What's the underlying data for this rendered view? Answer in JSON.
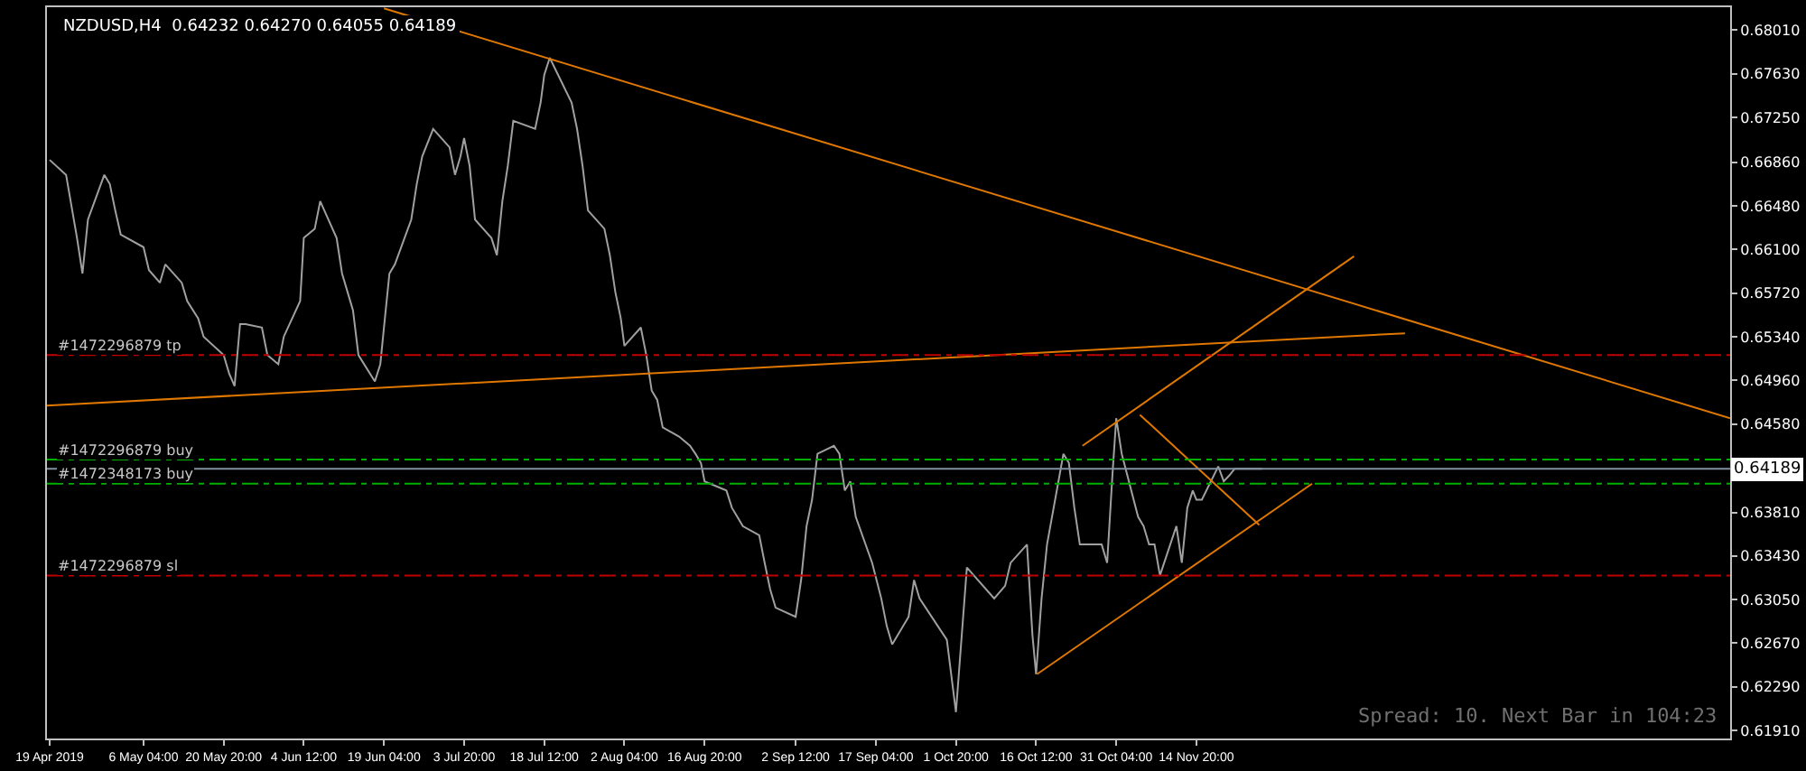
{
  "chart_data": {
    "type": "line",
    "title": "NZDUSD,H4  0.64232 0.64270 0.64055 0.64189",
    "x": [
      "2019-04-19T00:00",
      "2019-04-22T00:00",
      "2019-04-24T00:00",
      "2019-04-25T00:00",
      "2019-04-26T00:00",
      "2019-04-29T00:00",
      "2019-04-30T00:00",
      "2019-05-01T00:00",
      "2019-05-02T00:00",
      "2019-05-06T04:00",
      "2019-05-07T04:00",
      "2019-05-09T04:00",
      "2019-05-10T04:00",
      "2019-05-13T04:00",
      "2019-05-14T04:00",
      "2019-05-16T04:00",
      "2019-05-17T04:00",
      "2019-05-20T20:00",
      "2019-05-21T20:00",
      "2019-05-22T20:00",
      "2019-05-23T20:00",
      "2019-05-24T20:00",
      "2019-05-27T20:00",
      "2019-05-28T20:00",
      "2019-05-30T20:00",
      "2019-05-31T20:00",
      "2019-06-03T20:00",
      "2019-06-04T12:00",
      "2019-06-06T12:00",
      "2019-06-07T12:00",
      "2019-06-10T12:00",
      "2019-06-11T12:00",
      "2019-06-12T12:00",
      "2019-06-13T12:00",
      "2019-06-14T12:00",
      "2019-06-17T12:00",
      "2019-06-18T12:00",
      "2019-06-19T04:00",
      "2019-06-20T04:00",
      "2019-06-21T04:00",
      "2019-06-24T04:00",
      "2019-06-25T04:00",
      "2019-06-26T04:00",
      "2019-06-28T04:00",
      "2019-07-01T04:00",
      "2019-07-02T04:00",
      "2019-07-03T04:00",
      "2019-07-03T20:00",
      "2019-07-04T20:00",
      "2019-07-05T20:00",
      "2019-07-08T20:00",
      "2019-07-09T20:00",
      "2019-07-10T20:00",
      "2019-07-11T20:00",
      "2019-07-12T20:00",
      "2019-07-16T20:00",
      "2019-07-17T20:00",
      "2019-07-18T12:00",
      "2019-07-19T12:00",
      "2019-07-23T12:00",
      "2019-07-24T12:00",
      "2019-07-25T12:00",
      "2019-07-26T12:00",
      "2019-07-29T12:00",
      "2019-07-30T12:00",
      "2019-07-31T12:00",
      "2019-08-01T12:00",
      "2019-08-02T04:00",
      "2019-08-05T04:00",
      "2019-08-06T04:00",
      "2019-08-07T04:00",
      "2019-08-08T04:00",
      "2019-08-09T04:00",
      "2019-08-12T04:00",
      "2019-08-14T04:00",
      "2019-08-15T04:00",
      "2019-08-16T04:00",
      "2019-08-16T20:00",
      "2019-08-20T20:00",
      "2019-08-21T20:00",
      "2019-08-22T20:00",
      "2019-08-23T20:00",
      "2019-08-26T20:00",
      "2019-08-27T20:00",
      "2019-08-28T20:00",
      "2019-08-29T20:00",
      "2019-09-02T12:00",
      "2019-09-03T12:00",
      "2019-09-04T12:00",
      "2019-09-05T12:00",
      "2019-09-06T12:00",
      "2019-09-09T12:00",
      "2019-09-10T12:00",
      "2019-09-11T12:00",
      "2019-09-12T12:00",
      "2019-09-13T12:00",
      "2019-09-16T12:00",
      "2019-09-18T04:00",
      "2019-09-19T04:00",
      "2019-09-20T04:00",
      "2019-09-23T04:00",
      "2019-09-24T04:00",
      "2019-09-25T04:00",
      "2019-09-30T04:00",
      "2019-10-01T20:00",
      "2019-10-03T20:00",
      "2019-10-08T20:00",
      "2019-10-10T20:00",
      "2019-10-11T20:00",
      "2019-10-14T20:00",
      "2019-10-15T20:00",
      "2019-10-16T12:00",
      "2019-10-17T12:00",
      "2019-10-18T12:00",
      "2019-10-21T12:00",
      "2019-10-22T12:00",
      "2019-10-23T12:00",
      "2019-10-24T12:00",
      "2019-10-28T12:00",
      "2019-10-29T12:00",
      "2019-10-30T12:00",
      "2019-10-31T04:00",
      "2019-11-01T04:00",
      "2019-11-04T04:00",
      "2019-11-05T04:00",
      "2019-11-06T04:00",
      "2019-11-07T04:00",
      "2019-11-08T04:00",
      "2019-11-11T04:00",
      "2019-11-12T04:00",
      "2019-11-13T04:00",
      "2019-11-14T04:00",
      "2019-11-14T20:00",
      "2019-11-15T20:00",
      "2019-11-18T20:00",
      "2019-11-19T20:00",
      "2019-11-20T20:00",
      "2019-11-21T20:00",
      "2019-11-25T20:00",
      "2019-11-26T20:00"
    ],
    "series": [
      {
        "color": "#a0a0a0",
        "values": [
          0.6688,
          0.6675,
          0.662,
          0.6589,
          0.6636,
          0.6675,
          0.6667,
          0.6644,
          0.6623,
          0.6612,
          0.6592,
          0.6581,
          0.6597,
          0.6581,
          0.6565,
          0.655,
          0.6534,
          0.6518,
          0.6502,
          0.6491,
          0.6545,
          0.6545,
          0.6542,
          0.6518,
          0.651,
          0.6534,
          0.6565,
          0.662,
          0.6628,
          0.6652,
          0.662,
          0.6589,
          0.6573,
          0.6557,
          0.6518,
          0.6495,
          0.651,
          0.6542,
          0.6589,
          0.6597,
          0.6636,
          0.6667,
          0.6691,
          0.6715,
          0.6699,
          0.6675,
          0.6691,
          0.6707,
          0.6683,
          0.6636,
          0.662,
          0.6605,
          0.6652,
          0.6683,
          0.6722,
          0.6715,
          0.6738,
          0.6762,
          0.6777,
          0.6738,
          0.6715,
          0.6683,
          0.6644,
          0.6628,
          0.6605,
          0.6573,
          0.655,
          0.6526,
          0.6542,
          0.6518,
          0.6487,
          0.6479,
          0.6455,
          0.6447,
          0.6439,
          0.6432,
          0.6424,
          0.6408,
          0.64,
          0.6385,
          0.6377,
          0.6369,
          0.6361,
          0.6337,
          0.6314,
          0.6298,
          0.629,
          0.6322,
          0.6369,
          0.6392,
          0.6432,
          0.6439,
          0.6432,
          0.64,
          0.6408,
          0.6377,
          0.6337,
          0.6306,
          0.6282,
          0.6266,
          0.629,
          0.6322,
          0.6306,
          0.627,
          0.6207,
          0.6333,
          0.6306,
          0.6317,
          0.6337,
          0.6353,
          0.6274,
          0.624,
          0.6306,
          0.6353,
          0.6432,
          0.6424,
          0.6385,
          0.6353,
          0.6353,
          0.6337,
          0.6416,
          0.6463,
          0.6432,
          0.6377,
          0.6369,
          0.6353,
          0.6353,
          0.6326,
          0.6369,
          0.6337,
          0.6385,
          0.64,
          0.6392,
          0.6392,
          0.6421,
          0.6408,
          0.6413,
          0.6419,
          0.6419,
          0.6419
        ]
      },
      {
        "type": "line",
        "color": "#e07800",
        "x": [
          "2019-06-19T04:00",
          "2020-02-20T12:00"
        ],
        "values": [
          0.682,
          0.6463
        ]
      },
      {
        "type": "line",
        "color": "#e07800",
        "x": [
          "2019-04-18T12:00",
          "2019-12-23T00:00"
        ],
        "values": [
          0.6474,
          0.6537
        ]
      },
      {
        "type": "line",
        "color": "#e07800",
        "x": [
          "2019-10-25T00:00",
          "2019-12-13T16:00"
        ],
        "values": [
          0.6439,
          0.6604
        ]
      },
      {
        "type": "line",
        "color": "#e07800",
        "x": [
          "2019-10-16T16:00",
          "2019-12-06T00:00"
        ],
        "values": [
          0.624,
          0.6406
        ]
      },
      {
        "type": "line",
        "color": "#e07800",
        "x": [
          "2019-11-04T12:00",
          "2019-11-26T08:00"
        ],
        "values": [
          0.6466,
          0.637
        ]
      }
    ],
    "xlim": [
      "2019-04-18T12:00",
      "2020-02-20T12:00"
    ],
    "xticks": [
      {
        "value": "2019-04-19T00:00",
        "label": "19 Apr 2019"
      },
      {
        "value": "2019-05-06T04:00",
        "label": "6 May 04:00"
      },
      {
        "value": "2019-05-20T20:00",
        "label": "20 May 20:00"
      },
      {
        "value": "2019-06-04T12:00",
        "label": "4 Jun 12:00"
      },
      {
        "value": "2019-06-19T04:00",
        "label": "19 Jun 04:00"
      },
      {
        "value": "2019-07-03T20:00",
        "label": "3 Jul 20:00"
      },
      {
        "value": "2019-07-18T12:00",
        "label": "18 Jul 12:00"
      },
      {
        "value": "2019-08-02T04:00",
        "label": "2 Aug 04:00"
      },
      {
        "value": "2019-08-16T20:00",
        "label": "16 Aug 20:00"
      },
      {
        "value": "2019-09-02T12:00",
        "label": "2 Sep 12:00"
      },
      {
        "value": "2019-09-17T04:00",
        "label": "17 Sep 04:00"
      },
      {
        "value": "2019-10-01T20:00",
        "label": "1 Oct 20:00"
      },
      {
        "value": "2019-10-16T12:00",
        "label": "16 Oct 12:00"
      },
      {
        "value": "2019-10-31T04:00",
        "label": "31 Oct 04:00"
      },
      {
        "value": "2019-11-14T20:00",
        "label": "14 Nov 20:00"
      }
    ],
    "ylim": [
      0.6184,
      0.6821
    ],
    "yticks": [
      {
        "value": 0.6801,
        "label": "0.68010"
      },
      {
        "value": 0.6763,
        "label": "0.67630"
      },
      {
        "value": 0.6725,
        "label": "0.67250"
      },
      {
        "value": 0.6686,
        "label": "0.66860"
      },
      {
        "value": 0.6648,
        "label": "0.66480"
      },
      {
        "value": 0.661,
        "label": "0.66100"
      },
      {
        "value": 0.6572,
        "label": "0.65720"
      },
      {
        "value": 0.6534,
        "label": "0.65340"
      },
      {
        "value": 0.6496,
        "label": "0.64960"
      },
      {
        "value": 0.6458,
        "label": "0.64580"
      },
      {
        "value": 0.6381,
        "label": "0.63810"
      },
      {
        "value": 0.6343,
        "label": "0.63430"
      },
      {
        "value": 0.6305,
        "label": "0.63050"
      },
      {
        "value": 0.6267,
        "label": "0.62670"
      },
      {
        "value": 0.6229,
        "label": "0.62290"
      },
      {
        "value": 0.6191,
        "label": "0.61910"
      }
    ],
    "ref_lines": [
      {
        "axis": "y",
        "value": 0.6518,
        "label": "#1472296879 tp",
        "color": "#c00000",
        "line_style": "dashed"
      },
      {
        "axis": "y",
        "value": 0.6427,
        "label": "#1472296879 buy",
        "color": "#00b000",
        "line_style": "dashed"
      },
      {
        "axis": "y",
        "value": 0.6406,
        "label": "#1472348173 buy",
        "color": "#00b000",
        "line_style": "dashed"
      },
      {
        "axis": "y",
        "value": 0.6326,
        "label": "#1472296879 sl",
        "color": "#c00000",
        "line_style": "dashed"
      },
      {
        "axis": "y",
        "value": 0.64189,
        "label": "0.64189",
        "color": "#8090a0",
        "line_style": "solid"
      }
    ],
    "annotations": [
      "Spread: 10. Next Bar in 104:23"
    ],
    "grid": false
  }
}
